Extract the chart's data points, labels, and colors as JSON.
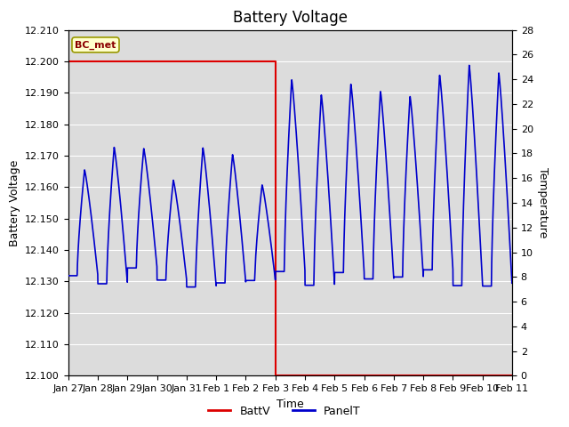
{
  "title": "Battery Voltage",
  "xlabel": "Time",
  "ylabel_left": "Battery Voltage",
  "ylabel_right": "Temperature",
  "annotation_text": "BC_met",
  "background_color": "#ffffff",
  "plot_bg_color": "#dcdcdc",
  "grid_color": "#ffffff",
  "x_tick_labels": [
    "Jan 27",
    "Jan 28",
    "Jan 29",
    "Jan 30",
    "Jan 31",
    "Feb 1",
    "Feb 2",
    "Feb 3",
    "Feb 4",
    "Feb 5",
    "Feb 6",
    "Feb 7",
    "Feb 8",
    "Feb 9",
    "Feb 10",
    "Feb 11"
  ],
  "ylim_left": [
    12.1,
    12.21
  ],
  "ylim_right": [
    0,
    28
  ],
  "y_ticks_left": [
    12.1,
    12.11,
    12.12,
    12.13,
    12.14,
    12.15,
    12.16,
    12.17,
    12.18,
    12.19,
    12.2,
    12.21
  ],
  "y_ticks_right": [
    0,
    2,
    4,
    6,
    8,
    10,
    12,
    14,
    16,
    18,
    20,
    22,
    24,
    26,
    28
  ],
  "batt_color": "#dd0000",
  "panel_color": "#0000cc",
  "legend_labels": [
    "BattV",
    "PanelT"
  ],
  "title_fontsize": 12,
  "axis_fontsize": 9,
  "tick_fontsize": 8
}
